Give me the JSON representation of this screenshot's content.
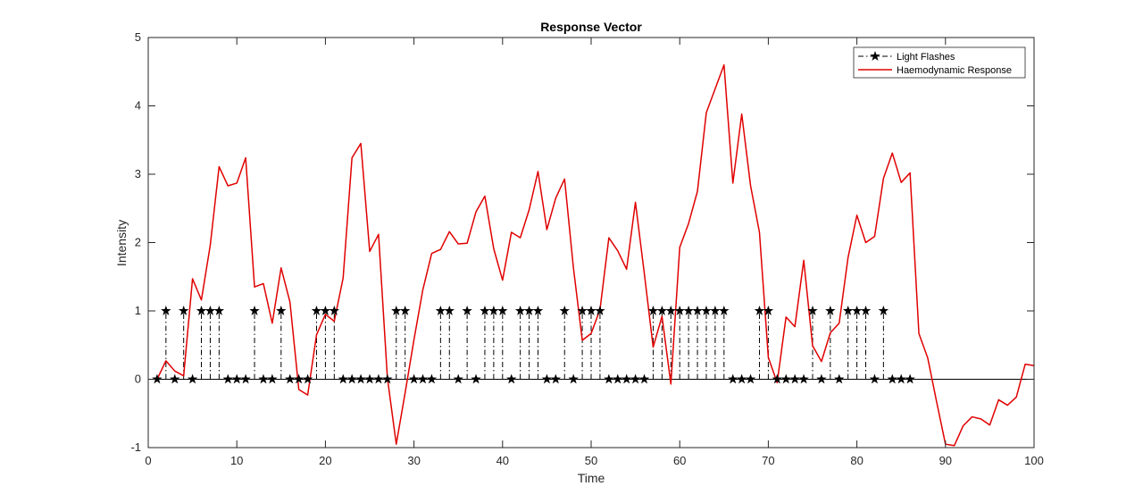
{
  "chart_data": {
    "type": "line",
    "title": "Response Vector",
    "xlabel": "Time",
    "ylabel": "Intensity",
    "xlim": [
      0,
      100
    ],
    "ylim": [
      -1,
      5
    ],
    "xticks": [
      0,
      10,
      20,
      30,
      40,
      50,
      60,
      70,
      80,
      90,
      100
    ],
    "yticks": [
      -1,
      0,
      1,
      2,
      3,
      4,
      5
    ],
    "grid": false,
    "legend_position": "top-right",
    "series": [
      {
        "name": "Light Flashes",
        "style": "stem",
        "line": "dash-dot",
        "marker": "star",
        "color": "#000000",
        "x": [
          1,
          2,
          3,
          4,
          5,
          6,
          7,
          8,
          9,
          10,
          11,
          12,
          13,
          14,
          15,
          16,
          17,
          18,
          19,
          20,
          21,
          22,
          23,
          24,
          25,
          26,
          27,
          28,
          29,
          30,
          31,
          32,
          33,
          34,
          35,
          36,
          37,
          38,
          39,
          40,
          41,
          42,
          43,
          44,
          45,
          46,
          47,
          48,
          49,
          50,
          51,
          52,
          53,
          54,
          55,
          56,
          57,
          58,
          59,
          60,
          61,
          62,
          63,
          64,
          65,
          66,
          67,
          68,
          69,
          70,
          71,
          72,
          73,
          74,
          75,
          76,
          77,
          78,
          79,
          80,
          81,
          82,
          83,
          84,
          85,
          86
        ],
        "values": [
          0,
          1,
          0,
          1,
          0,
          1,
          1,
          1,
          0,
          0,
          0,
          1,
          0,
          0,
          1,
          0,
          0,
          0,
          1,
          1,
          1,
          0,
          0,
          0,
          0,
          0,
          0,
          1,
          1,
          0,
          0,
          0,
          1,
          1,
          0,
          1,
          0,
          1,
          1,
          1,
          0,
          1,
          1,
          1,
          0,
          0,
          1,
          0,
          1,
          1,
          1,
          0,
          0,
          0,
          0,
          0,
          1,
          1,
          1,
          1,
          1,
          1,
          1,
          1,
          1,
          0,
          0,
          0,
          1,
          1,
          0,
          0,
          0,
          0,
          1,
          0,
          1,
          0,
          1,
          1,
          1,
          0,
          1,
          0,
          0,
          0
        ]
      },
      {
        "name": "Haemodynamic Response",
        "style": "line",
        "line": "solid",
        "color": "#e00000",
        "x": [
          1,
          2,
          3,
          4,
          5,
          6,
          7,
          8,
          9,
          10,
          11,
          12,
          13,
          14,
          15,
          16,
          17,
          18,
          19,
          20,
          21,
          22,
          23,
          24,
          25,
          26,
          27,
          28,
          29,
          30,
          31,
          32,
          33,
          34,
          35,
          36,
          37,
          38,
          39,
          40,
          41,
          42,
          43,
          44,
          45,
          46,
          47,
          48,
          49,
          50,
          51,
          52,
          53,
          54,
          55,
          56,
          57,
          58,
          59,
          60,
          61,
          62,
          63,
          64,
          65,
          66,
          67,
          68,
          69,
          70,
          71,
          72,
          73,
          74,
          75,
          76,
          77,
          78,
          79,
          80,
          81,
          82,
          83,
          84,
          85,
          86,
          87,
          88,
          89,
          90,
          91,
          92,
          93,
          94,
          95,
          96,
          97,
          98,
          99,
          100
        ],
        "values": [
          0.0,
          0.27,
          0.12,
          0.05,
          1.47,
          1.16,
          1.96,
          3.11,
          2.83,
          2.87,
          3.24,
          1.35,
          1.4,
          0.82,
          1.63,
          1.13,
          -0.15,
          -0.23,
          0.65,
          0.95,
          0.85,
          1.48,
          3.24,
          3.45,
          1.87,
          2.12,
          0.02,
          -0.95,
          -0.2,
          0.58,
          1.31,
          1.84,
          1.9,
          2.16,
          1.98,
          1.99,
          2.45,
          2.68,
          1.91,
          1.45,
          2.15,
          2.07,
          2.48,
          3.04,
          2.19,
          2.65,
          2.93,
          1.63,
          0.57,
          0.67,
          1.02,
          2.07,
          1.88,
          1.61,
          2.59,
          1.55,
          0.47,
          0.92,
          -0.07,
          1.93,
          2.28,
          2.75,
          3.9,
          4.25,
          4.6,
          2.87,
          3.88,
          2.83,
          2.15,
          0.32,
          -0.05,
          0.91,
          0.77,
          1.74,
          0.49,
          0.26,
          0.68,
          0.82,
          1.78,
          2.4,
          2.0,
          2.09,
          2.94,
          3.31,
          2.88,
          3.02,
          0.67,
          0.31,
          -0.33,
          -0.95,
          -0.97,
          -0.68,
          -0.55,
          -0.58,
          -0.67,
          -0.3,
          -0.38,
          -0.26,
          0.22,
          0.2
        ]
      }
    ]
  }
}
